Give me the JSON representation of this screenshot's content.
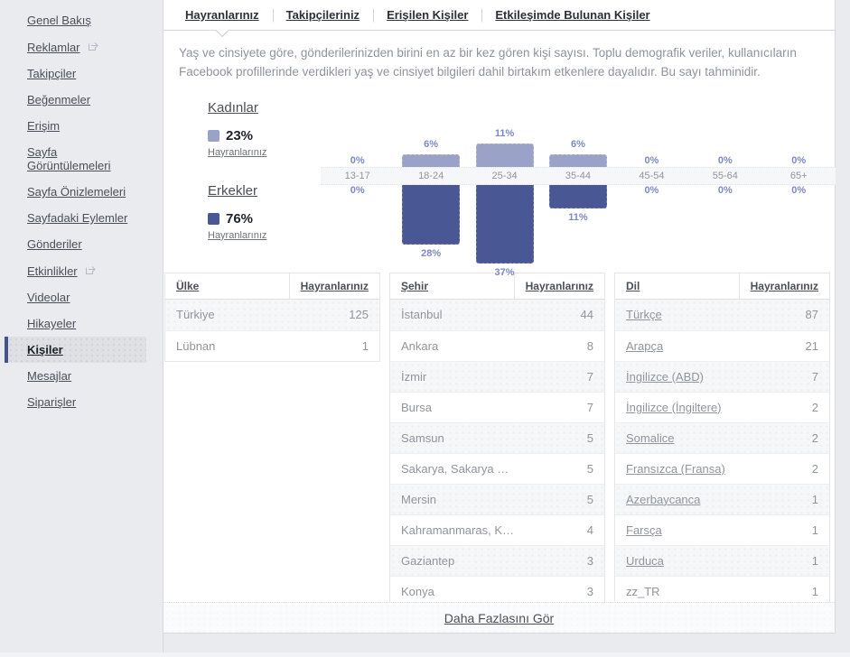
{
  "sidebar": {
    "items": [
      {
        "label": "Genel Bakış",
        "external": false,
        "selected": false
      },
      {
        "label": "Reklamlar",
        "external": true,
        "selected": false
      },
      {
        "label": "Takipçiler",
        "external": false,
        "selected": false
      },
      {
        "label": "Beğenmeler",
        "external": false,
        "selected": false
      },
      {
        "label": "Erişim",
        "external": false,
        "selected": false
      },
      {
        "label": "Sayfa Görüntülemeleri",
        "external": false,
        "selected": false
      },
      {
        "label": "Sayfa Önizlemeleri",
        "external": false,
        "selected": false
      },
      {
        "label": "Sayfadaki Eylemler",
        "external": false,
        "selected": false
      },
      {
        "label": "Gönderiler",
        "external": false,
        "selected": false
      },
      {
        "label": "Etkinlikler",
        "external": true,
        "selected": false
      },
      {
        "label": "Videolar",
        "external": false,
        "selected": false
      },
      {
        "label": "Hikayeler",
        "external": false,
        "selected": false
      },
      {
        "label": "Kişiler",
        "external": false,
        "selected": true
      },
      {
        "label": "Mesajlar",
        "external": false,
        "selected": false
      },
      {
        "label": "Siparişler",
        "external": false,
        "selected": false
      }
    ]
  },
  "tabs": [
    {
      "label": "Hayranlarınız",
      "active": true
    },
    {
      "label": "Takipçileriniz",
      "active": false
    },
    {
      "label": "Erişilen Kişiler",
      "active": false
    },
    {
      "label": "Etkileşimde Bulunan Kişiler",
      "active": false
    }
  ],
  "description": "Yaş ve cinsiyete göre, gönderilerinizden birini en az bir kez gören kişi sayısı. Toplu demografik veriler, kullanıcıların Facebook profillerinde verdikleri yaş ve cinsiyet bilgileri dahil birtakım etkenlere dayalıdır. Bu sayı tahminidir.",
  "chart_data": {
    "type": "bar",
    "categories": [
      "13-17",
      "18-24",
      "25-34",
      "35-44",
      "45-54",
      "55-64",
      "65+"
    ],
    "series": [
      {
        "name": "Kadınlar",
        "share": "23%",
        "share_caption": "Hayranlarınız",
        "color": "#9aa2c8",
        "values": [
          0,
          6,
          11,
          6,
          0,
          0,
          0
        ]
      },
      {
        "name": "Erkekler",
        "share": "76%",
        "share_caption": "Hayranlarınız",
        "color": "#4a5795",
        "values": [
          0,
          28,
          37,
          11,
          0,
          0,
          0
        ]
      }
    ],
    "value_suffix": "%",
    "orientation": "mirrored-vertical",
    "xlabel": "",
    "ylabel": "",
    "grid": false
  },
  "tables": [
    {
      "name_header": "Ülke",
      "value_header": "Hayranlarınız",
      "rows": [
        {
          "name": "Türkiye",
          "value": "125",
          "link": false
        },
        {
          "name": "Lübnan",
          "value": "1",
          "link": false
        }
      ]
    },
    {
      "name_header": "Şehir",
      "value_header": "Hayranlarınız",
      "rows": [
        {
          "name": "İstanbul",
          "value": "44",
          "link": false
        },
        {
          "name": "Ankara",
          "value": "8",
          "link": false
        },
        {
          "name": "İzmir",
          "value": "7",
          "link": false
        },
        {
          "name": "Bursa",
          "value": "7",
          "link": false
        },
        {
          "name": "Samsun",
          "value": "5",
          "link": false
        },
        {
          "name": "Sakarya, Sakarya Prov…",
          "value": "5",
          "link": false
        },
        {
          "name": "Mersin",
          "value": "5",
          "link": false
        },
        {
          "name": "Kahramanmaras, Kahr…",
          "value": "4",
          "link": false
        },
        {
          "name": "Gaziantep",
          "value": "3",
          "link": false
        },
        {
          "name": "Konya",
          "value": "3",
          "link": false
        }
      ]
    },
    {
      "name_header": "Dil",
      "value_header": "Hayranlarınız",
      "rows": [
        {
          "name": "Türkçe",
          "value": "87",
          "link": true
        },
        {
          "name": "Arapça",
          "value": "21",
          "link": true
        },
        {
          "name": "İngilizce (ABD)",
          "value": "7",
          "link": true
        },
        {
          "name": "İngilizce (İngiltere)",
          "value": "2",
          "link": true
        },
        {
          "name": "Somalice",
          "value": "2",
          "link": true
        },
        {
          "name": "Fransızca (Fransa)",
          "value": "2",
          "link": true
        },
        {
          "name": "Azerbaycanca",
          "value": "1",
          "link": true
        },
        {
          "name": "Farsça",
          "value": "1",
          "link": true
        },
        {
          "name": "Urduca",
          "value": "1",
          "link": true
        },
        {
          "name": "zz_TR",
          "value": "1",
          "link": false
        }
      ]
    }
  ],
  "footer": {
    "see_more_label": "Daha Fazlasını Gör"
  }
}
